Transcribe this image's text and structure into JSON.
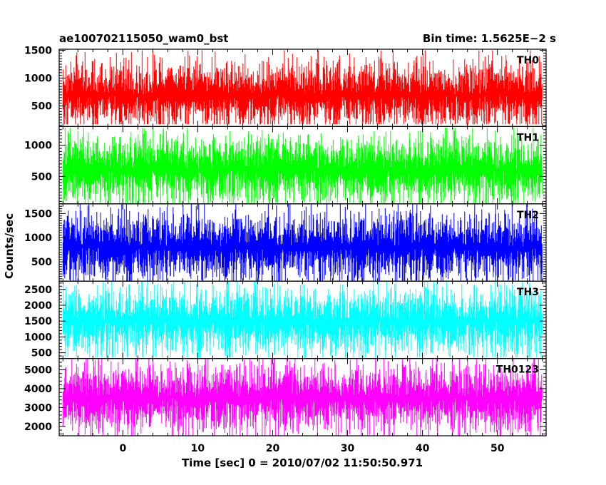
{
  "header": {
    "left_title": "ae100702115050_wam0_bst",
    "right_title": "Bin time: 1.5625E−2 s"
  },
  "chart_data": {
    "type": "line",
    "title": "ae100702115050_wam0_bst",
    "subtitle": "Bin time: 1.5625E−2 s",
    "xlabel": "Time [sec] 0 = 2010/07/02 11:50:50.971",
    "ylabel": "Counts/sec",
    "xlim": [
      -8.5,
      56.5
    ],
    "x_ticks": [
      0,
      10,
      20,
      30,
      40,
      50
    ],
    "data_x_range": [
      -8,
      56
    ],
    "bin_time_s": 0.015625,
    "grid": false,
    "panels": [
      {
        "name": "TH0",
        "color": "#ff0000",
        "ylim": [
          130,
          1520
        ],
        "y_ticks": [
          500,
          1000,
          1500
        ],
        "baseline": 700,
        "min": 170,
        "max": 1500
      },
      {
        "name": "TH1",
        "color": "#00ff00",
        "ylim": [
          60,
          1300
        ],
        "y_ticks": [
          500,
          1000
        ],
        "baseline": 600,
        "min": 70,
        "max": 1280
      },
      {
        "name": "TH2",
        "color": "#0000ff",
        "ylim": [
          100,
          1700
        ],
        "y_ticks": [
          500,
          1000,
          1500
        ],
        "baseline": 800,
        "min": 110,
        "max": 1700
      },
      {
        "name": "TH3",
        "color": "#00ffff",
        "ylim": [
          320,
          2760
        ],
        "y_ticks": [
          500,
          1000,
          1500,
          2000,
          2500
        ],
        "baseline": 1500,
        "min": 350,
        "max": 2750
      },
      {
        "name": "TH0123",
        "color": "#ff00ff",
        "ylim": [
          1500,
          5600
        ],
        "y_ticks": [
          2000,
          3000,
          4000,
          5000
        ],
        "baseline": 3500,
        "min": 1500,
        "max": 5600
      }
    ]
  }
}
